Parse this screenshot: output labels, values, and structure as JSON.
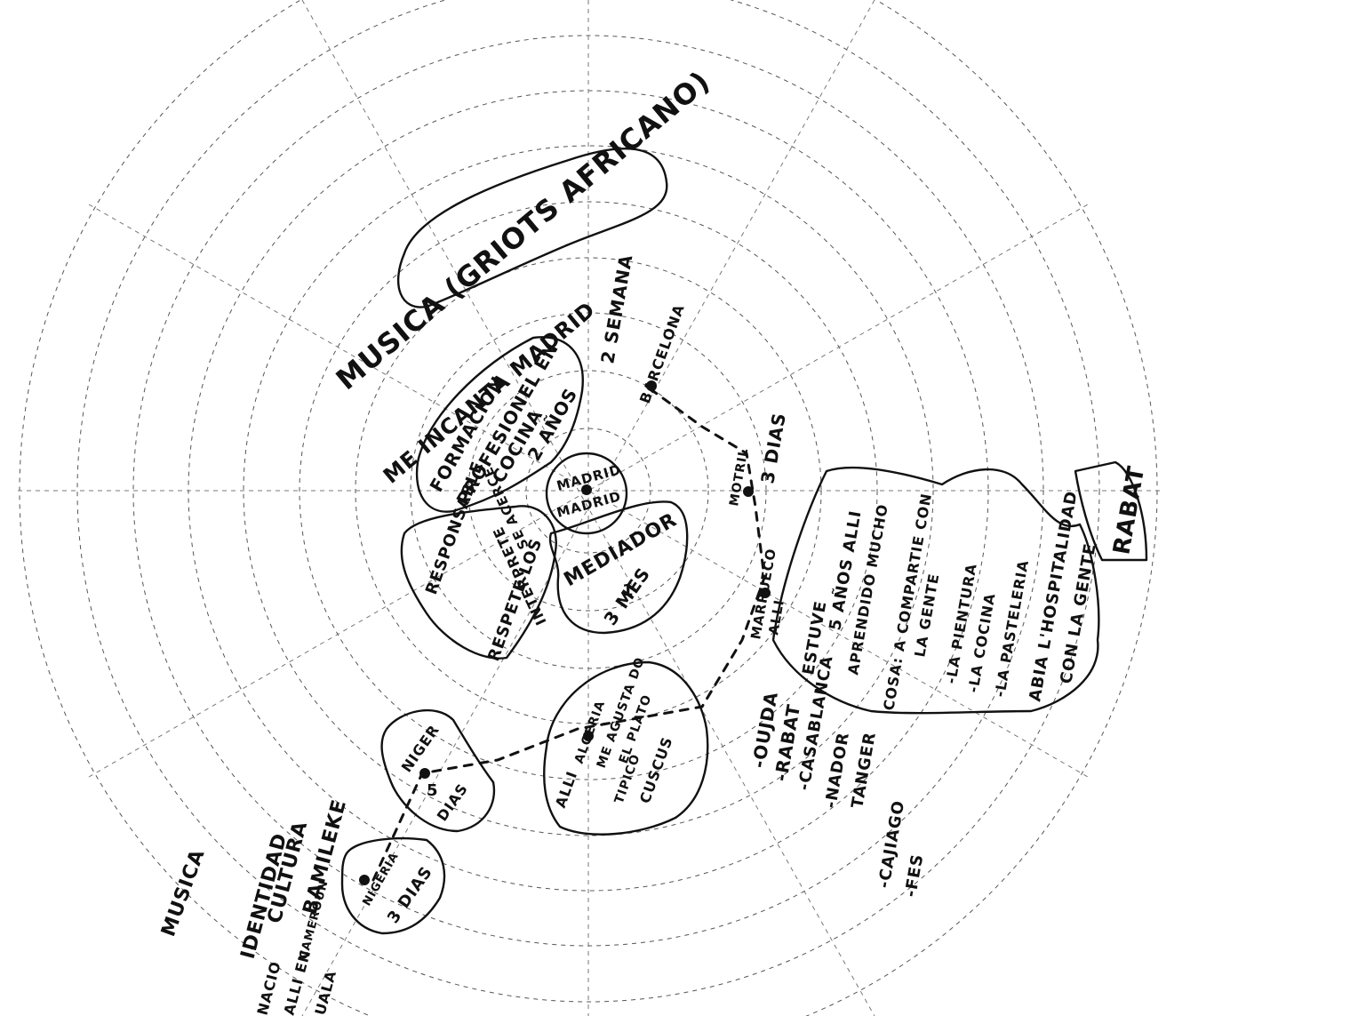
{
  "map": {
    "labels": {
      "musica_griots": "MUSICA (GRIOTS AFRICANO)",
      "me_incanta": "ME INCANTA MADRID",
      "dos_semana": "2 SEMANA",
      "barcelona": "BARCELONA",
      "formacion": [
        "FORMACION",
        "PROFESIONEL EN",
        "COCINA",
        "2 AÑOS"
      ],
      "madrid": [
        "MADRID",
        "MADRID"
      ],
      "responsable": [
        "RESPONSABLE",
        "RESPETE LOS",
        "INTERPRETE",
        "SE ACERCE"
      ],
      "mediador": [
        "MEDIADOR",
        "1",
        "3 MES"
      ],
      "motril": "MOTRIL",
      "tres_dias": "3 DIAS",
      "marruecos": [
        "MARRUECO",
        "ALLI"
      ],
      "estuve": [
        "ESTUVE",
        "5 AÑOS ALLI",
        "APRENDIDO MUCHO",
        "COSA: A COMPARTIE CON",
        "LA GENTE",
        "-LA PIENTURA",
        "-LA COCINA",
        "-LA PASTELERIA",
        "ABIA L'HOSPITALIDAD",
        "CON LA GENTE"
      ],
      "rabat_box": "RABAT",
      "ciudades": [
        "-OUJDA",
        "-RABAT",
        "-CASABLANCA",
        "-NADOR",
        "TANGER",
        "-CAJIAGO",
        "-FES"
      ],
      "algeria": [
        "ALLI",
        "ALGERIA",
        "ME AGUSTA DO",
        "EL PLATO",
        "TIPICO",
        "CUSCUS"
      ],
      "niger": [
        "NIGER",
        "5",
        "DIAS"
      ],
      "nigeria": [
        "NIGERIA",
        "3 DIAS"
      ],
      "identidad": [
        "MUSICA",
        "IDENTIDAD",
        "CULTURA",
        "BAMILEKE"
      ],
      "cameroun": [
        "NACIO",
        "ALLI EN",
        "UALA",
        "CAMEROUN"
      ]
    }
  }
}
